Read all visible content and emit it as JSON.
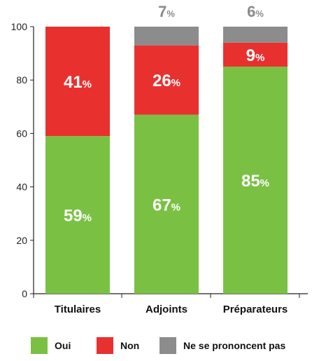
{
  "chart_data": {
    "type": "bar",
    "stacked": true,
    "categories": [
      "Titulaires",
      "Adjoints",
      "Préparateurs"
    ],
    "series": [
      {
        "name": "Oui",
        "values": [
          59,
          67,
          85
        ],
        "labels": [
          "59",
          "67",
          "85"
        ],
        "color": "#7ac143"
      },
      {
        "name": "Non",
        "values": [
          41,
          26,
          9
        ],
        "labels": [
          "41",
          "26",
          "9"
        ],
        "color": "#e8312f"
      },
      {
        "name": "Ne se prononcent pas",
        "values": [
          0,
          7,
          6
        ],
        "labels": [
          "",
          "7",
          "6"
        ],
        "color": "#8c8c8c"
      }
    ],
    "percent_sign": "%",
    "ylim": [
      0,
      100
    ],
    "yticks": [
      "0",
      "20",
      "40",
      "60",
      "80",
      "100"
    ],
    "legend_position": "bottom"
  }
}
